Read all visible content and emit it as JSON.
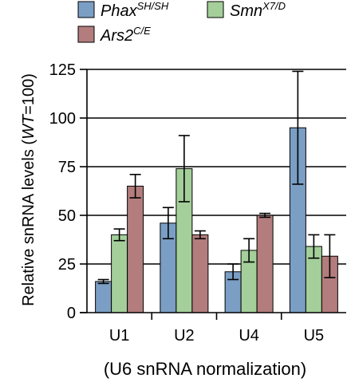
{
  "chart_data": {
    "type": "bar",
    "categories": [
      "U1",
      "U2",
      "U4",
      "U5"
    ],
    "series": [
      {
        "name": "Phax",
        "name_sup": "SH/SH",
        "color": "#7b9ec4",
        "values": [
          16,
          46,
          21,
          95
        ],
        "errors": [
          1,
          8,
          4,
          29
        ]
      },
      {
        "name": "Smn",
        "name_sup": "X7/D",
        "color": "#a4cf9a",
        "values": [
          40,
          74,
          32,
          34
        ],
        "errors": [
          3,
          17,
          6,
          6
        ]
      },
      {
        "name": "Ars2",
        "name_sup": "C/E",
        "color": "#b37d7d",
        "values": [
          65,
          40,
          50,
          29
        ],
        "errors": [
          6,
          2,
          1,
          11
        ]
      }
    ],
    "yticks": [
      0,
      25,
      50,
      75,
      100,
      125
    ],
    "ylim": [
      0,
      125
    ],
    "grid": true,
    "legend_position": "top",
    "ylabel": {
      "prefix": "Relative snRNA levels (",
      "italic": "WT",
      "suffix": "=100)"
    },
    "xlabel": "(U6 snRNA normalization)"
  }
}
